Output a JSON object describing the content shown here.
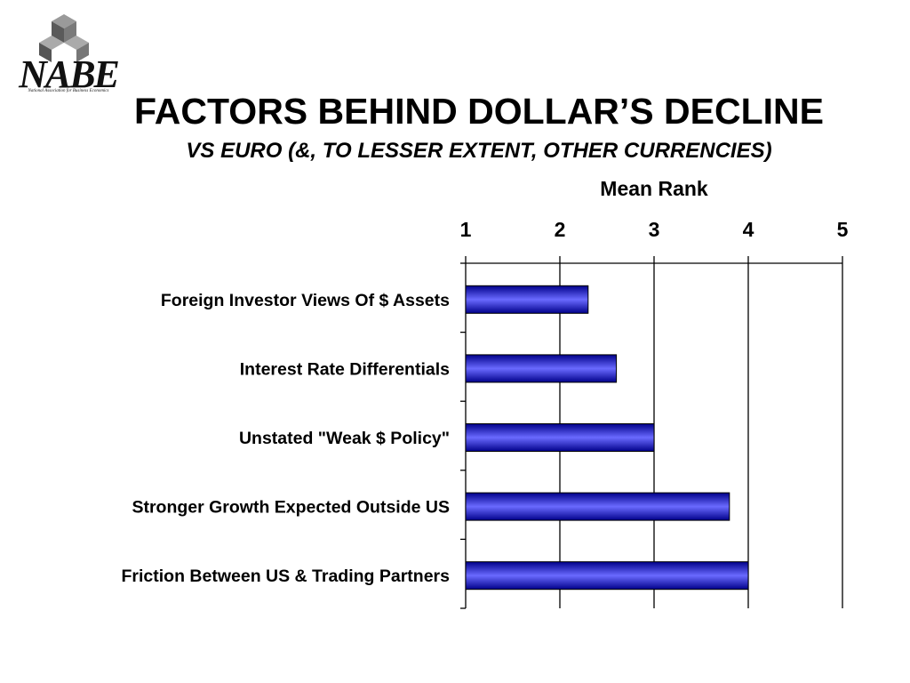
{
  "logo": {
    "text": "NABE",
    "subtext": "National Association for Business Economics"
  },
  "title": "FACTORS BEHIND DOLLAR’S DECLINE",
  "subtitle": "VS EURO (&, TO LESSER EXTENT, OTHER CURRENCIES)",
  "chart_data": {
    "type": "bar",
    "orientation": "horizontal",
    "xlabel": "Mean Rank",
    "xlim": [
      1,
      5
    ],
    "xticks": [
      "1",
      "2",
      "3",
      "4",
      "5"
    ],
    "grid": true,
    "categories": [
      "Foreign Investor Views Of $ Assets",
      "Interest Rate Differentials",
      "Unstated \"Weak $ Policy\"",
      "Stronger Growth Expected Outside US",
      "Friction Between US & Trading Partners"
    ],
    "values": [
      2.3,
      2.6,
      3.0,
      3.8,
      4.0
    ],
    "bar_color": "#1a1aff",
    "bar_highlight": "#6a6aff",
    "bar_shadow": "#00008a"
  }
}
